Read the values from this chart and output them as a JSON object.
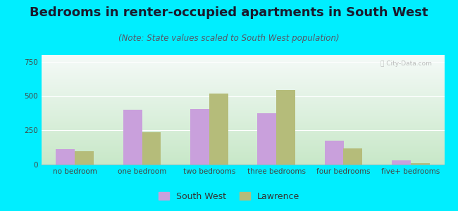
{
  "title": "Bedrooms in renter-occupied apartments in South West",
  "subtitle": "(Note: State values scaled to South West population)",
  "categories": [
    "no bedroom",
    "one bedroom",
    "two bedrooms",
    "three bedrooms",
    "four bedrooms",
    "five+ bedrooms"
  ],
  "southwest_values": [
    115,
    400,
    405,
    375,
    175,
    32
  ],
  "lawrence_values": [
    100,
    235,
    520,
    545,
    120,
    10
  ],
  "southwest_color": "#c9a0dc",
  "lawrence_color": "#b5bc7a",
  "bg_outer": "#00eeff",
  "bg_plot_topleft": "#e8f5ee",
  "bg_plot_topright": "#f5faf8",
  "bg_plot_bottom": "#c8e8c8",
  "ylim": [
    0,
    800
  ],
  "yticks": [
    0,
    250,
    500,
    750
  ],
  "bar_width": 0.28,
  "legend_labels": [
    "South West",
    "Lawrence"
  ],
  "title_fontsize": 13,
  "subtitle_fontsize": 8.5,
  "tick_fontsize": 7.5,
  "legend_fontsize": 9
}
